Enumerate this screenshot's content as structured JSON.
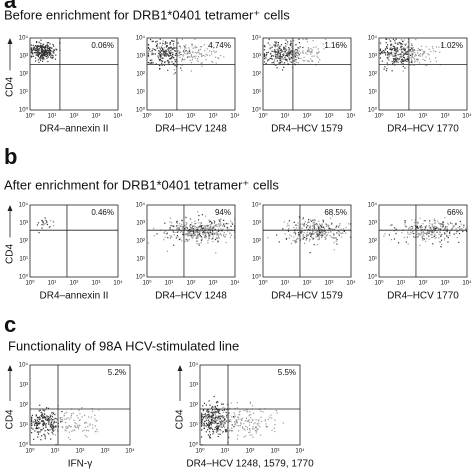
{
  "figure": {
    "axis_ticks": [
      "10⁰",
      "10¹",
      "10²",
      "10³",
      "10⁴"
    ],
    "panels": [
      {
        "label": "a",
        "title": "Before enrichment for DRB1*0401 tetramer⁺ cells",
        "plots": [
          {
            "x_label": "DR4–annexin II",
            "y_label": "CD4",
            "percent": "0.06%"
          },
          {
            "x_label": "DR4–HCV 1248",
            "percent": "4.74%"
          },
          {
            "x_label": "DR4–HCV 1579",
            "percent": "1.16%"
          },
          {
            "x_label": "DR4–HCV 1770",
            "percent": "1.02%"
          }
        ]
      },
      {
        "label": "b",
        "title": "After enrichment for DRB1*0401 tetramer⁺ cells",
        "plots": [
          {
            "x_label": "DR4–annexin II",
            "y_label": "CD4",
            "percent": "0.46%"
          },
          {
            "x_label": "DR4–HCV 1248",
            "percent": "94%"
          },
          {
            "x_label": "DR4–HCV 1579",
            "percent": "68.5%"
          },
          {
            "x_label": "DR4–HCV 1770",
            "percent": "66%"
          }
        ]
      },
      {
        "label": "c",
        "title": "Functionality of 98A HCV-stimulated line",
        "plots": [
          {
            "x_label": "IFN-γ",
            "y_label": "CD4",
            "percent": "5.2%"
          },
          {
            "x_label": "DR4–HCV 1248, 1579, 1770",
            "y_label": "CD4",
            "percent": "5.5%"
          }
        ]
      }
    ]
  }
}
